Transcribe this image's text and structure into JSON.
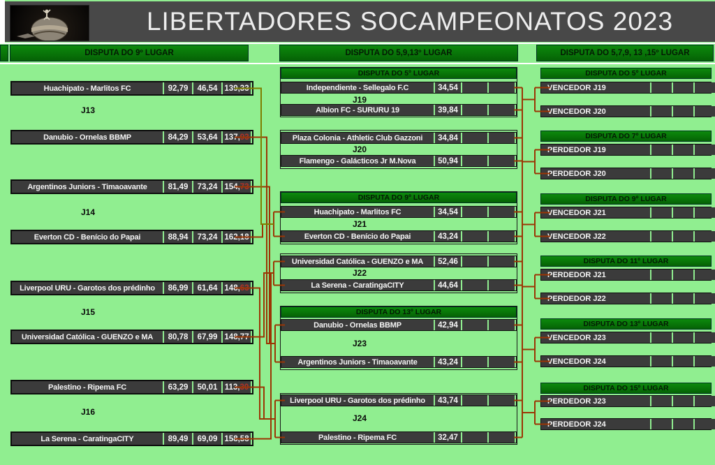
{
  "title": "LIBERTADORES SOCAMPEONATOS 2023",
  "logo": "copa-libertadores-trophy",
  "colors": {
    "background": "#90ee90",
    "header_background": "#484848",
    "title_color": "#ededed",
    "bar_green": "#0a820a",
    "row_dark": "#3b3b3b",
    "row_text": "#f4f4f4",
    "connector_red": "#9b3504",
    "connector_olive": "#7e7e00",
    "losing_decimal_red": "#b43326"
  },
  "left": {
    "header": "DISPUTA DO 9º LUGAR",
    "pairs": [
      {
        "match_label": "J13",
        "rows": [
          {
            "name": "Huachipato - Marlitos FC",
            "v1": "92,79",
            "v2": "46,54",
            "total": "139,33",
            "tail_red": false
          },
          {
            "name": "Danubio - Ornelas BBMP",
            "v1": "84,29",
            "v2": "53,64",
            "total": "137,93",
            "tail_red": true
          }
        ]
      },
      {
        "match_label": "J14",
        "rows": [
          {
            "name": "Argentinos Juniors - Timaoavante",
            "v1": "81,49",
            "v2": "73,24",
            "total": "154,73",
            "tail_red": true
          },
          {
            "name": "Everton CD - Benício do Papai",
            "v1": "88,94",
            "v2": "73,24",
            "total": "162,18",
            "tail_red": false
          }
        ]
      },
      {
        "match_label": "J15",
        "rows": [
          {
            "name": "Liverpool URU - Garotos dos prédinho",
            "v1": "86,99",
            "v2": "61,64",
            "total": "148,63",
            "tail_red": true
          },
          {
            "name": "Universidad Católica - GUENZO e MA",
            "v1": "80,78",
            "v2": "67,99",
            "total": "148,77",
            "tail_red": false
          }
        ]
      },
      {
        "match_label": "J16",
        "rows": [
          {
            "name": "Palestino - Ripema FC",
            "v1": "63,29",
            "v2": "50,01",
            "total": "113,30",
            "tail_red": true
          },
          {
            "name": "La Serena - CaratingaCITY",
            "v1": "89,49",
            "v2": "69,09",
            "total": "158,58",
            "tail_red": false
          }
        ]
      }
    ]
  },
  "middle": {
    "header": "DISPUTA DO 5,9,13º LUGAR",
    "groups": [
      {
        "subheader": "DISPUTA DO 5º LUGAR",
        "match_label": "J19",
        "rows": [
          {
            "name": "Independiente - Sellegalo F.C",
            "value": "34,54"
          },
          {
            "name": "Albion FC - SURURU 19",
            "value": "39,84"
          }
        ]
      },
      {
        "subheader": "",
        "match_label": "J20",
        "rows": [
          {
            "name": "Plaza Colonia - Athletic Club Gazzoni",
            "value": "34,84"
          },
          {
            "name": "Flamengo - Galácticos Jr M.Nova",
            "value": "50,94"
          }
        ]
      },
      {
        "subheader": "DISPUTA DO 9º LUGAR",
        "match_label": "J21",
        "rows": [
          {
            "name": "Huachipato - Marlitos FC",
            "value": "34,54"
          },
          {
            "name": "Everton CD - Benício do Papai",
            "value": "43,24"
          }
        ]
      },
      {
        "subheader": "",
        "match_label": "J22",
        "rows": [
          {
            "name": "Universidad Católica - GUENZO e MA",
            "value": "52,46"
          },
          {
            "name": "La Serena - CaratingaCITY",
            "value": "44,64"
          }
        ]
      },
      {
        "subheader": "DISPUTA DO 13º LUGAR",
        "match_label": "J23",
        "rows": [
          {
            "name": "Danubio - Ornelas BBMP",
            "value": "42,94"
          },
          {
            "name": "Argentinos Juniors - Timaoavante",
            "value": "43,24"
          }
        ]
      },
      {
        "subheader": "",
        "match_label": "J24",
        "rows": [
          {
            "name": "Liverpool URU - Garotos dos prédinho",
            "value": "43,74"
          },
          {
            "name": "Palestino - Ripema FC",
            "value": "32,47"
          }
        ]
      }
    ]
  },
  "right": {
    "header": "DISPUTA DO 5,7,9, 13 ,15º LUGAR",
    "groups": [
      {
        "subheader": "DISPUTA DO 5º LUGAR",
        "rows": [
          "VENCEDOR J19",
          "VENCEDOR J20"
        ]
      },
      {
        "subheader": "DISPUTA DO 7º LUGAR",
        "rows": [
          "PERDEDOR J19",
          "PERDEDOR J20"
        ]
      },
      {
        "subheader": "DISPUTA DO 9º LUGAR",
        "rows": [
          "VENCEDOR J21",
          "VENCEDOR J22"
        ]
      },
      {
        "subheader": "DISPUTA DO 11º LUGAR",
        "rows": [
          "PERDEDOR J21",
          "PERDEDOR J22"
        ]
      },
      {
        "subheader": "DISPUTA DO 13º LUGAR",
        "rows": [
          "VENCEDOR J23",
          "VENCEDOR J24"
        ]
      },
      {
        "subheader": "DISPUTA DO 15º LUGAR",
        "rows": [
          "PERDEDOR J23",
          "PERDEDOR J24"
        ]
      }
    ]
  }
}
